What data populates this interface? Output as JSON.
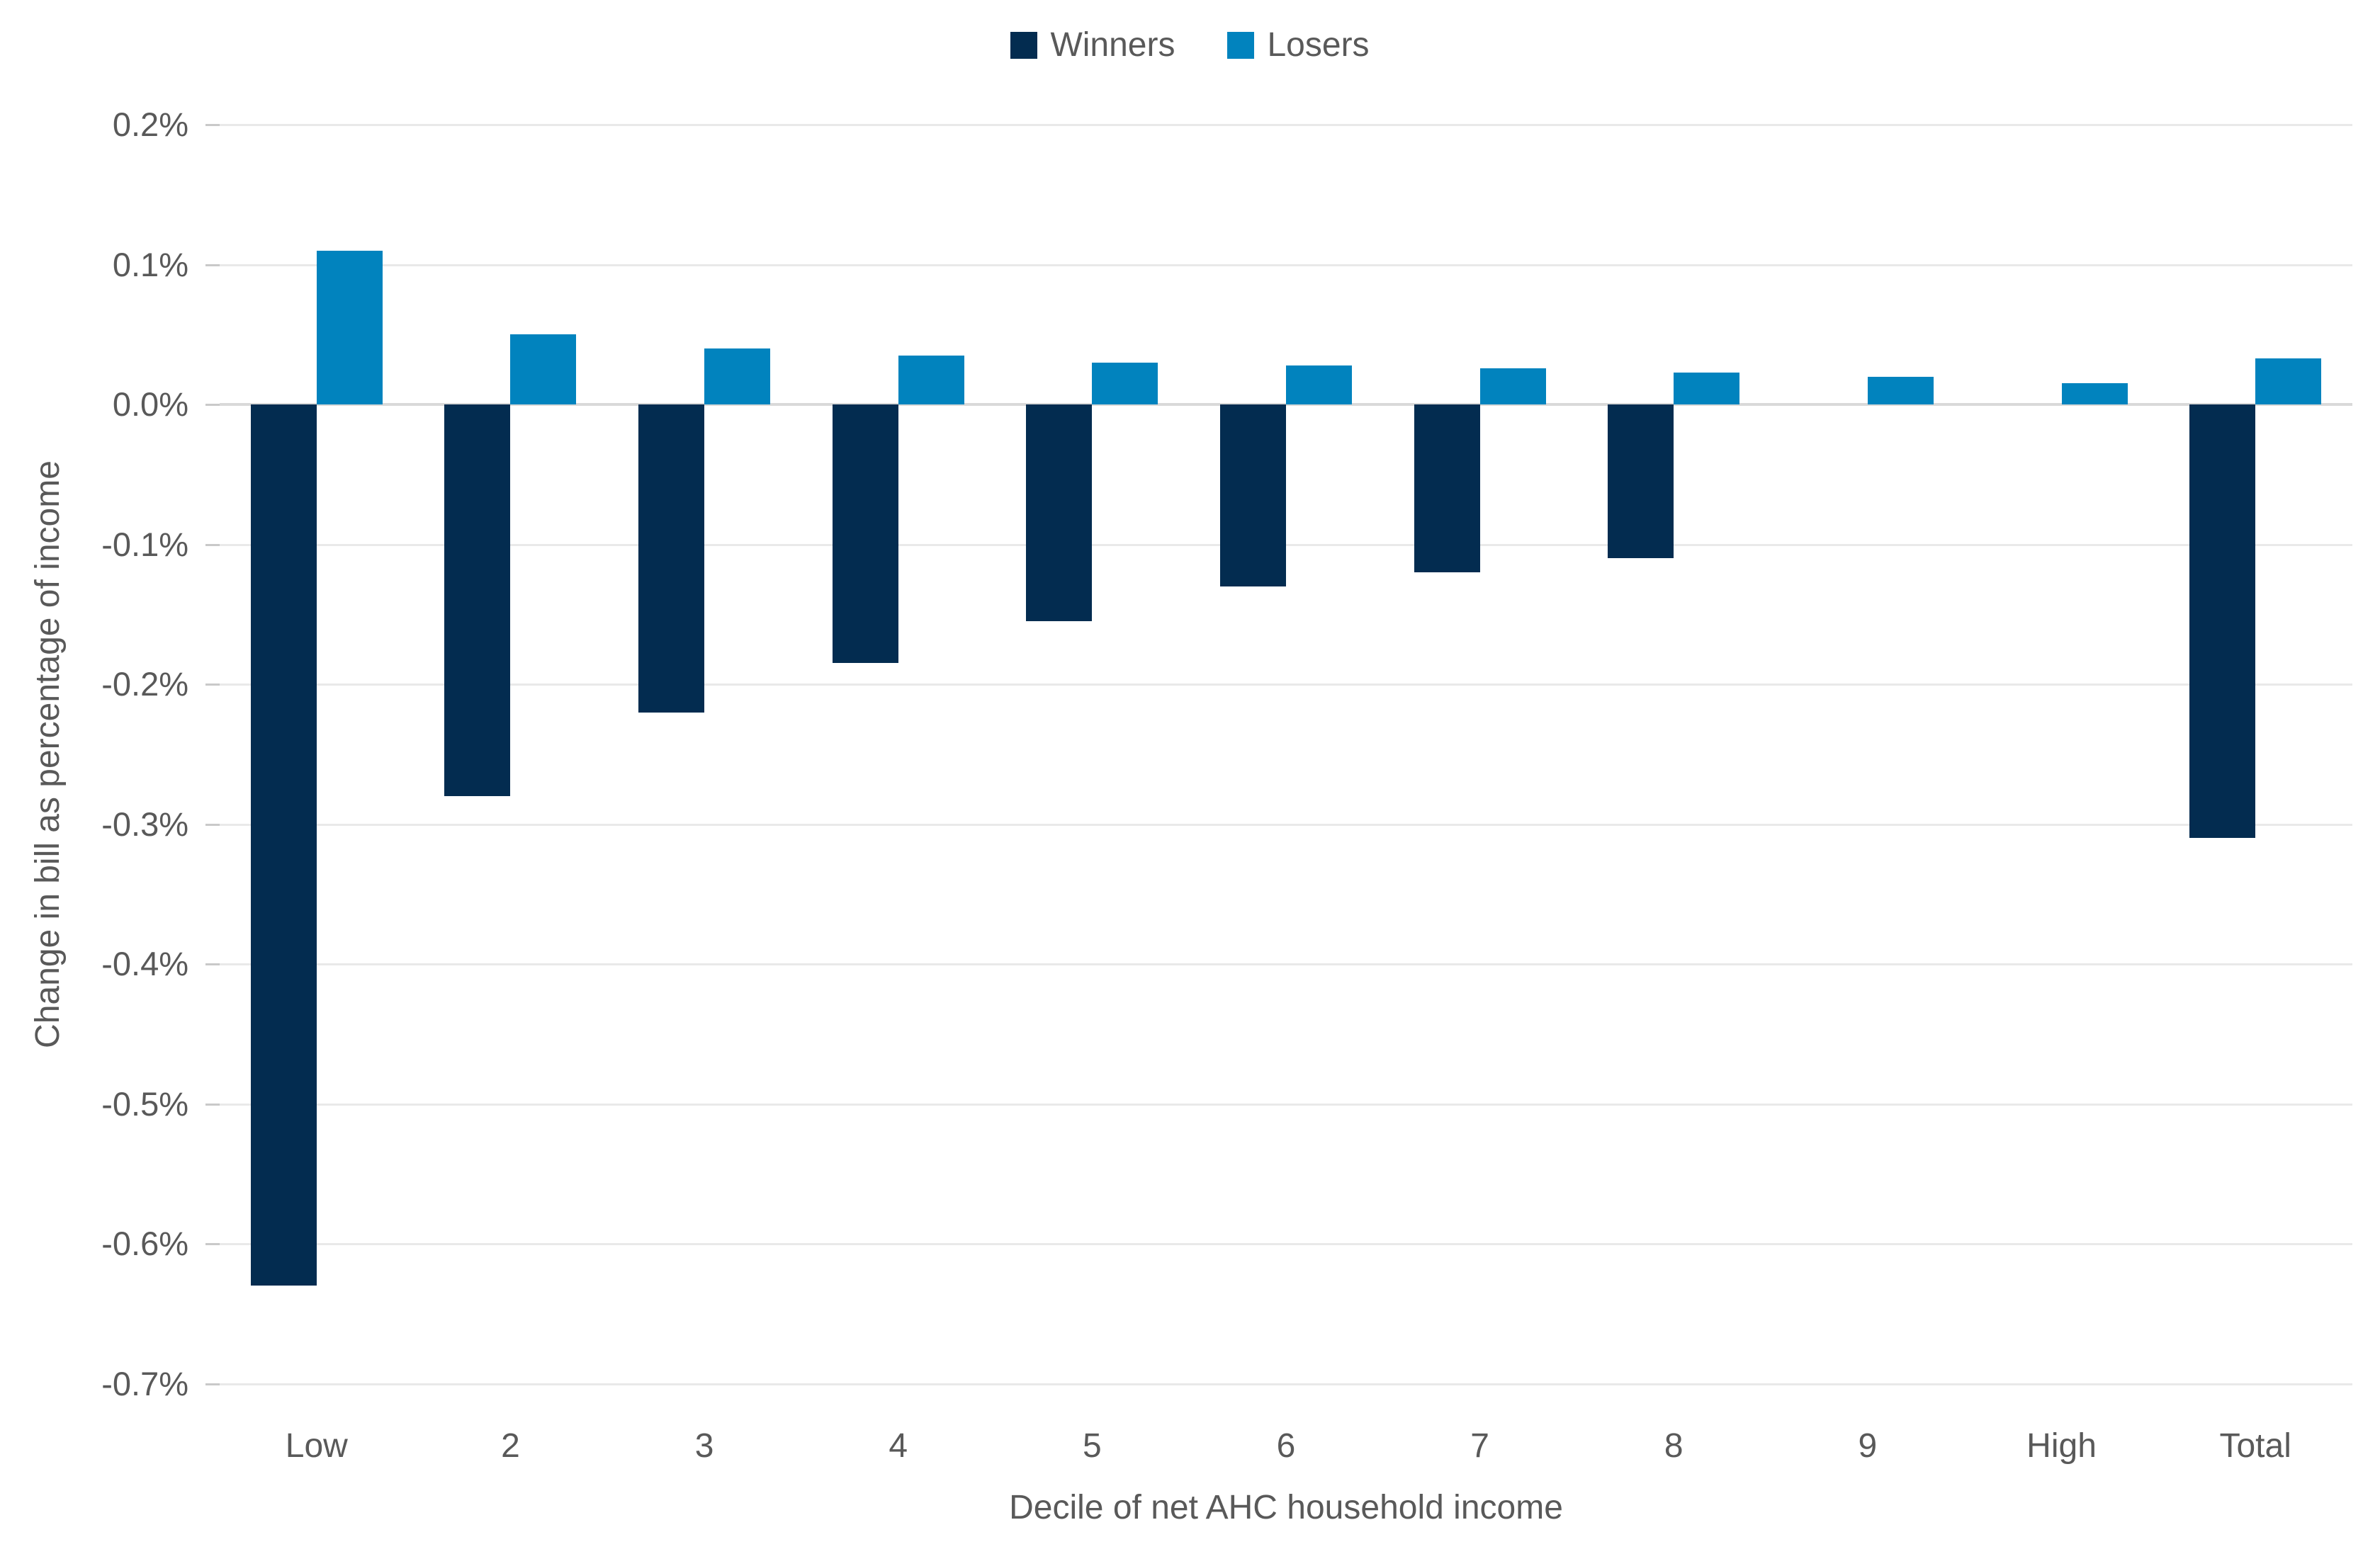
{
  "legend": {
    "items": [
      {
        "label": "Winners",
        "color": "#032c50"
      },
      {
        "label": "Losers",
        "color": "#0183be"
      }
    ]
  },
  "chart_data": {
    "type": "bar",
    "title": "",
    "xlabel": "Decile of net AHC household income",
    "ylabel": "Change in bill as percentage of income",
    "categories": [
      "Low",
      "2",
      "3",
      "4",
      "5",
      "6",
      "7",
      "8",
      "9",
      "High",
      "Total"
    ],
    "series": [
      {
        "name": "Winners",
        "color": "#032c50",
        "values": [
          -0.63,
          -0.28,
          -0.22,
          -0.185,
          -0.155,
          -0.13,
          -0.12,
          -0.11,
          0,
          0,
          -0.31
        ]
      },
      {
        "name": "Losers",
        "color": "#0183be",
        "values": [
          0.11,
          0.05,
          0.04,
          0.035,
          0.03,
          0.028,
          0.026,
          0.023,
          0.02,
          0.015,
          0.033
        ]
      }
    ],
    "ylim": [
      -0.7,
      0.2
    ],
    "ytick_step": 0.1,
    "ytick_labels": [
      "0.2%",
      "0.1%",
      "0.0%",
      "-0.1%",
      "-0.2%",
      "-0.3%",
      "-0.4%",
      "-0.5%",
      "-0.6%",
      "-0.7%"
    ],
    "ytick_values": [
      0.2,
      0.1,
      0.0,
      -0.1,
      -0.2,
      -0.3,
      -0.4,
      -0.5,
      -0.6,
      -0.7
    ],
    "grid": "horizontal",
    "legend_position": "top",
    "unit": "percent of income"
  },
  "colors": {
    "text": "#595959",
    "gridline": "#e9e9e9",
    "zero_line": "#d9d9d9",
    "background": "#ffffff"
  }
}
